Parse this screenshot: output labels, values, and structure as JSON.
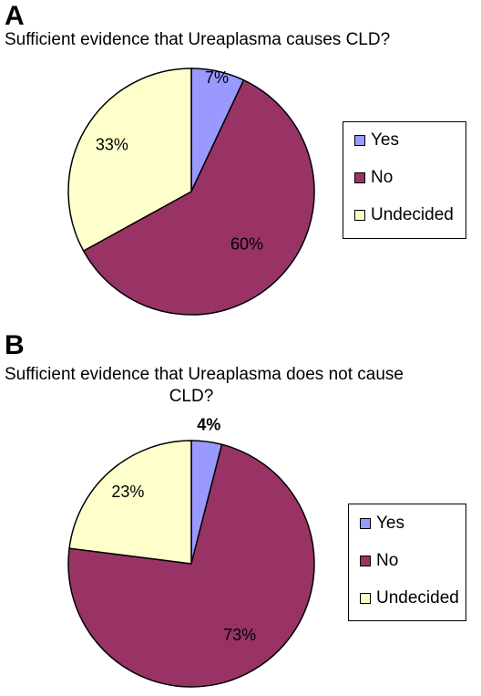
{
  "panels": [
    {
      "letter": "A",
      "title": "Sufficient evidence that Ureaplasma causes CLD?",
      "title_line1": "Sufficient evidence that Ureaplasma causes CLD?",
      "title_line2": "",
      "legend": [
        "Yes",
        "No",
        "Undecided"
      ]
    },
    {
      "letter": "B",
      "title": "Sufficient evidence that Ureaplasma does not cause CLD?",
      "title_line1": "Sufficient evidence that Ureaplasma does not cause",
      "title_line2": "CLD?",
      "legend": [
        "Yes",
        "No",
        "Undecided"
      ]
    }
  ],
  "colors": {
    "Yes": "#9999ff",
    "No": "#993366",
    "Undecided": "#ffffcc"
  },
  "chart_data": [
    {
      "type": "pie",
      "title": "Sufficient evidence that Ureaplasma causes CLD?",
      "categories": [
        "Yes",
        "No",
        "Undecided"
      ],
      "values": [
        7,
        60,
        33
      ],
      "labels": [
        "7%",
        "60%",
        "33%"
      ],
      "legend": "right"
    },
    {
      "type": "pie",
      "title": "Sufficient evidence that Ureaplasma does not cause CLD?",
      "categories": [
        "Yes",
        "No",
        "Undecided"
      ],
      "values": [
        4,
        73,
        23
      ],
      "labels": [
        "4%",
        "73%",
        "23%"
      ],
      "legend": "right"
    }
  ]
}
